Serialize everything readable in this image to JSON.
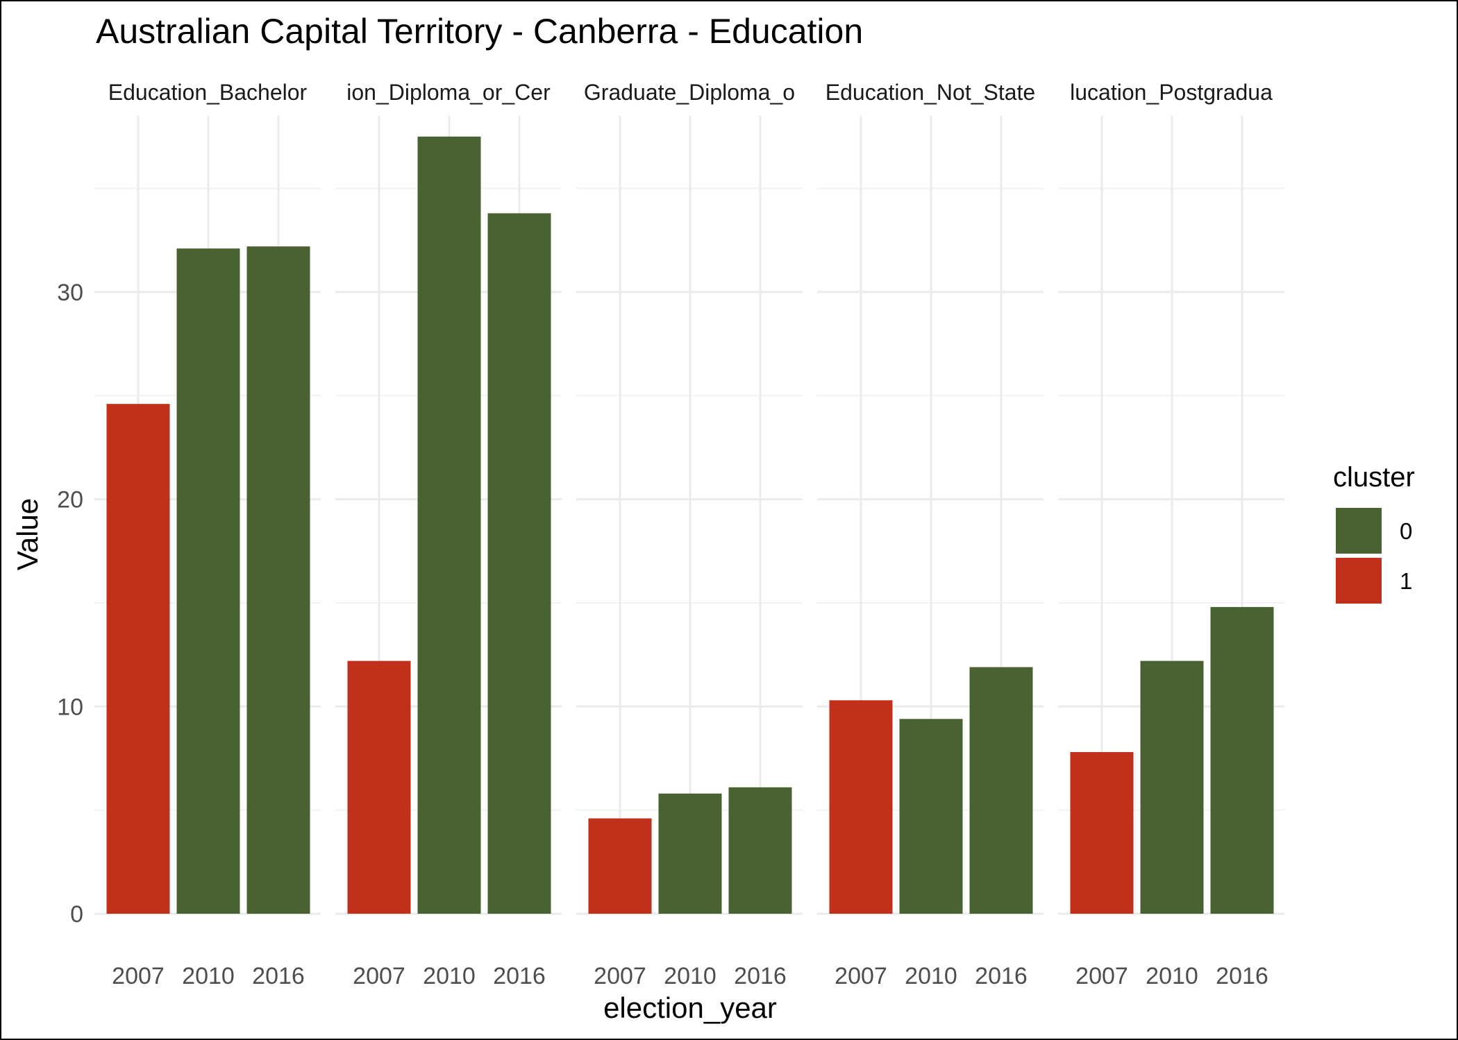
{
  "chart_data": {
    "type": "bar",
    "title": "Australian Capital Territory - Canberra - Education",
    "xlabel": "election_year",
    "ylabel": "Value",
    "ylim": [
      0,
      38.5
    ],
    "yticks": [
      0,
      10,
      20,
      30
    ],
    "grid": true,
    "legend": {
      "title": "cluster",
      "position": "right",
      "entries": [
        {
          "label": "0",
          "color": "#4a6132"
        },
        {
          "label": "1",
          "color": "#c0301b"
        }
      ]
    },
    "categories": [
      "2007",
      "2010",
      "2016"
    ],
    "facets": [
      {
        "label": "Education_Bachelor",
        "values": [
          24.6,
          32.1,
          32.2
        ],
        "clusters": [
          "1",
          "0",
          "0"
        ]
      },
      {
        "label": "ion_Diploma_or_Cer",
        "values": [
          12.2,
          37.5,
          33.8
        ],
        "clusters": [
          "1",
          "0",
          "0"
        ]
      },
      {
        "label": "Graduate_Diploma_o",
        "values": [
          4.6,
          5.8,
          6.1
        ],
        "clusters": [
          "1",
          "0",
          "0"
        ]
      },
      {
        "label": "Education_Not_State",
        "values": [
          10.3,
          9.4,
          11.9
        ],
        "clusters": [
          "1",
          "0",
          "0"
        ]
      },
      {
        "label": "lucation_Postgradua",
        "values": [
          7.8,
          12.2,
          14.8
        ],
        "clusters": [
          "1",
          "0",
          "0"
        ]
      }
    ]
  }
}
